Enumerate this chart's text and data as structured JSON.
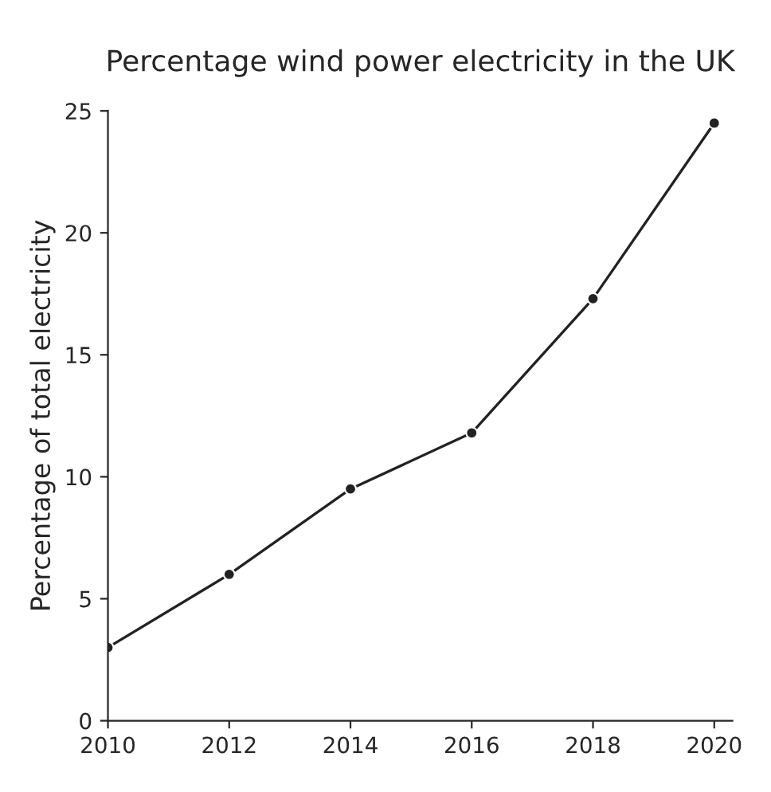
{
  "chart_data": {
    "type": "line",
    "title": "Percentage wind power electricity in the UK",
    "ylabel": "Percentage of total electricity",
    "x": [
      2010,
      2012,
      2014,
      2016,
      2018,
      2020
    ],
    "series": [
      {
        "color": "#222222",
        "values": [
          3.0,
          6.0,
          9.5,
          11.8,
          17.3,
          24.5
        ]
      }
    ],
    "xlim": [
      2010,
      2020.3
    ],
    "ylim": [
      0,
      25
    ],
    "xticks": [
      2010,
      2012,
      2014,
      2016,
      2018,
      2020
    ],
    "yticks": [
      0,
      5,
      10,
      15,
      20,
      25
    ],
    "marker": "circle",
    "line_style": "solid",
    "grid": false
  }
}
